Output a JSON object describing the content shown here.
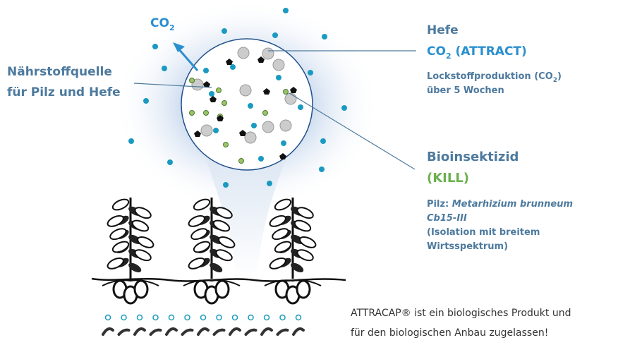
{
  "co2_label": {
    "main": "CO",
    "sub": "2"
  },
  "nutrient": {
    "line1": "Nährstoffquelle",
    "line2": "für Pilz und Hefe"
  },
  "yeast": {
    "title": "Hefe",
    "attract_main": "CO",
    "attract_sub": "2",
    "attract_rest": " (ATTRACT)",
    "desc1_main": "Lockstoffproduktion (CO",
    "desc1_sub": "2",
    "desc1_end": ")",
    "desc2": "über 5 Wochen"
  },
  "insecticide": {
    "title": "Bioinsektizid",
    "kill": "(KILL)",
    "pilz_prefix": "Pilz: ",
    "species1": "Metarhizium brunneum",
    "species2": "Cb15-III",
    "note1": "(Isolation mit breitem",
    "note2": "Wirtsspektrum)"
  },
  "footer": {
    "line1": "ATTRACAP® ist ein biologisches Produkt und",
    "line2": "für den biologischen Anbau zugelassen!"
  }
}
